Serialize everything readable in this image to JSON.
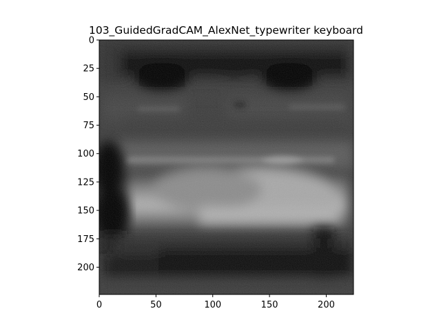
{
  "figure": {
    "title": "103_GuidedGradCAM_AlexNet_typewriter keyboard",
    "image_description_icon": "heatmap-image",
    "x_axis": {
      "range": [
        0,
        224
      ],
      "ticks": [
        0,
        50,
        100,
        150,
        200
      ],
      "tick_labels": [
        "0",
        "50",
        "100",
        "150",
        "200"
      ]
    },
    "y_axis": {
      "range": [
        0,
        224
      ],
      "inverted": true,
      "ticks": [
        0,
        25,
        50,
        75,
        100,
        125,
        150,
        175,
        200
      ],
      "tick_labels": [
        "0",
        "25",
        "50",
        "75",
        "100",
        "125",
        "150",
        "175",
        "200"
      ]
    },
    "colors": {
      "background": "#ffffff",
      "axes_edge": "#000000",
      "image_dark": "#050505",
      "image_light": "#cfcfcf"
    }
  }
}
